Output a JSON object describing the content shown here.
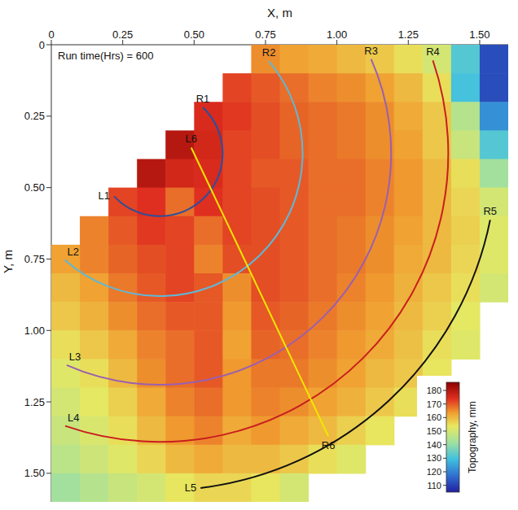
{
  "chart_data": {
    "type": "heatmap",
    "annotation": "Run time(Hrs) = 600",
    "x_label": "X, m",
    "y_label": "Y, m",
    "xlim": [
      0,
      1.6
    ],
    "ylim": [
      0,
      1.6
    ],
    "xticks": [
      0,
      0.25,
      {
        "value": 0.5,
        "label": "0.50"
      },
      0.75,
      {
        "value": 1,
        "label": "1.00"
      },
      1.25,
      {
        "value": 1.5,
        "label": "1.50"
      }
    ],
    "yticks": [
      0,
      0.25,
      {
        "value": 0.5,
        "label": "0.50"
      },
      0.75,
      {
        "value": 1,
        "label": "1.00"
      },
      1.25,
      {
        "value": 1.5,
        "label": "1.50"
      }
    ],
    "grid": false,
    "x": [
      0.05,
      0.15,
      0.25,
      0.35,
      0.45,
      0.55,
      0.65,
      0.75,
      0.85,
      0.95,
      1.05,
      1.15,
      1.25,
      1.35,
      1.45,
      1.55
    ],
    "y": [
      0.05,
      0.15,
      0.25,
      0.35,
      0.45,
      0.55,
      0.65,
      0.75,
      0.85,
      0.95,
      1.05,
      1.15,
      1.25,
      1.35,
      1.45,
      1.55
    ],
    "z": [
      [
        null,
        null,
        null,
        null,
        null,
        null,
        null,
        165,
        163,
        162,
        160,
        158,
        155,
        150,
        132,
        112
      ],
      [
        null,
        null,
        null,
        null,
        null,
        null,
        172,
        170,
        168,
        166,
        165,
        163,
        160,
        155,
        130,
        112
      ],
      [
        null,
        null,
        null,
        null,
        null,
        175,
        173,
        171,
        169,
        168,
        167,
        165,
        162,
        158,
        145,
        122
      ],
      [
        null,
        null,
        null,
        null,
        180,
        176,
        172,
        171,
        169,
        168,
        167,
        165,
        163,
        158,
        148,
        132
      ],
      [
        null,
        null,
        null,
        180,
        176,
        175,
        172,
        170,
        170,
        168,
        168,
        166,
        164,
        160,
        155,
        142
      ],
      [
        null,
        null,
        172,
        174,
        168,
        174,
        172,
        171,
        170,
        168,
        168,
        166,
        164,
        160,
        156,
        150
      ],
      [
        null,
        166,
        170,
        173,
        172,
        168,
        172,
        171,
        170,
        168,
        167,
        165,
        163,
        160,
        157,
        152
      ],
      [
        163,
        166,
        169,
        171,
        172,
        166,
        171,
        171,
        170,
        168,
        167,
        165,
        162,
        160,
        156,
        152
      ],
      [
        160,
        163,
        167,
        170,
        172,
        170,
        165,
        171,
        170,
        168,
        166,
        164,
        161,
        158,
        155,
        150
      ],
      [
        158,
        161,
        165,
        168,
        170,
        170,
        164,
        170,
        169,
        167,
        165,
        163,
        160,
        157,
        153,
        null
      ],
      [
        155,
        158,
        162,
        166,
        168,
        170,
        163,
        169,
        168,
        166,
        164,
        162,
        159,
        155,
        152,
        null
      ],
      [
        152,
        155,
        160,
        165,
        168,
        170,
        164,
        167,
        167,
        165,
        163,
        160,
        158,
        154,
        null,
        null
      ],
      [
        150,
        153,
        157,
        162,
        166,
        168,
        164,
        166,
        165,
        163,
        161,
        158,
        155,
        null,
        null,
        null
      ],
      [
        148,
        151,
        155,
        160,
        164,
        166,
        162,
        164,
        162,
        160,
        157,
        154,
        null,
        null,
        null,
        null
      ],
      [
        146,
        149,
        152,
        156,
        160,
        162,
        160,
        160,
        158,
        155,
        152,
        null,
        null,
        null,
        null,
        null
      ],
      [
        142,
        145,
        148,
        150,
        154,
        156,
        156,
        154,
        150,
        null,
        null,
        null,
        null,
        null,
        null,
        null
      ]
    ],
    "colorbar": {
      "label": "Topography, mm",
      "range": [
        105,
        186
      ],
      "ticks": [
        110,
        120,
        130,
        140,
        150,
        160,
        170,
        180
      ]
    },
    "profiles": [
      {
        "start_label": "L1",
        "end_label": "R1",
        "color": "#2a4f9e",
        "center": [
          0.38,
          0.38
        ],
        "radius": 0.22,
        "start": [
          0.21,
          0.54
        ],
        "end": [
          0.53,
          0.22
        ]
      },
      {
        "start_label": "L2",
        "end_label": "R2",
        "color": "#5fb8d8",
        "center": [
          0.38,
          0.38
        ],
        "radius": 0.5,
        "start": [
          0.05,
          0.75
        ],
        "end": [
          0.77,
          0.05
        ]
      },
      {
        "start_label": "L3",
        "end_label": "R3",
        "color": "#9a5fb0",
        "center": [
          0.38,
          0.38
        ],
        "radius": 0.81,
        "start": [
          0.05,
          1.13
        ],
        "end": [
          1.12,
          0.05
        ]
      },
      {
        "start_label": "L4",
        "end_label": "R4",
        "color": "#c81e1e",
        "center": [
          0.38,
          0.38
        ],
        "radius": 1.01,
        "start": [
          0.05,
          1.33
        ],
        "end": [
          1.35,
          0.05
        ]
      },
      {
        "start_label": "L5",
        "end_label": "R5",
        "color": "#111111",
        "center": [
          0.38,
          0.38
        ],
        "radius": 1.18,
        "start": [
          0.52,
          1.53
        ],
        "end": [
          1.57,
          0.62
        ]
      },
      {
        "start_label": "L6",
        "end_label": "R6",
        "color": "#f2e600",
        "start": [
          0.49,
          0.36
        ],
        "end": [
          0.97,
          1.37
        ]
      }
    ]
  }
}
